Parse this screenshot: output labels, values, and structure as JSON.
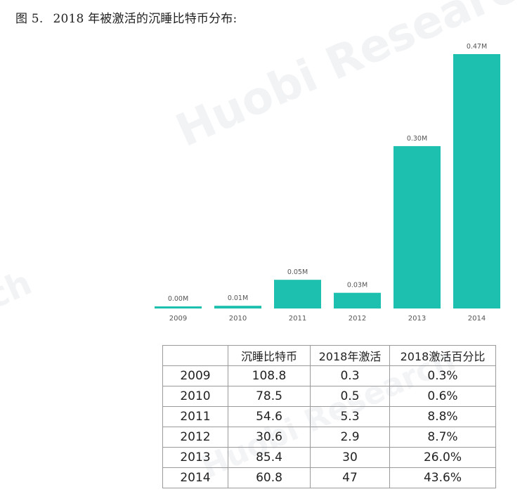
{
  "caption": {
    "figure_number": "图 5.",
    "title": "2018 年被激活的沉睡比特币分布:"
  },
  "watermark": {
    "text": "Huobi Research",
    "fragment_left": "ch"
  },
  "chart_data": {
    "type": "bar",
    "categories": [
      "2009",
      "2010",
      "2011",
      "2012",
      "2013",
      "2014"
    ],
    "values": [
      0.003,
      0.005,
      0.053,
      0.029,
      0.3,
      0.47
    ],
    "data_labels": [
      "0.00M",
      "0.01M",
      "0.05M",
      "0.03M",
      "0.30M",
      "0.47M"
    ],
    "title": "",
    "xlabel": "",
    "ylabel": "",
    "ylim": [
      0,
      0.47
    ],
    "grid": false,
    "bar_color": "#1dbfae"
  },
  "table": {
    "headers": [
      "",
      "沉睡比特币",
      "2018年激活",
      "2018激活百分比"
    ],
    "rows": [
      [
        "2009",
        "108.8",
        "0.3",
        "0.3%"
      ],
      [
        "2010",
        "78.5",
        "0.5",
        "0.6%"
      ],
      [
        "2011",
        "54.6",
        "5.3",
        "8.8%"
      ],
      [
        "2012",
        "30.6",
        "2.9",
        "8.7%"
      ],
      [
        "2013",
        "85.4",
        "30",
        "26.0%"
      ],
      [
        "2014",
        "60.8",
        "47",
        "43.6%"
      ]
    ]
  }
}
